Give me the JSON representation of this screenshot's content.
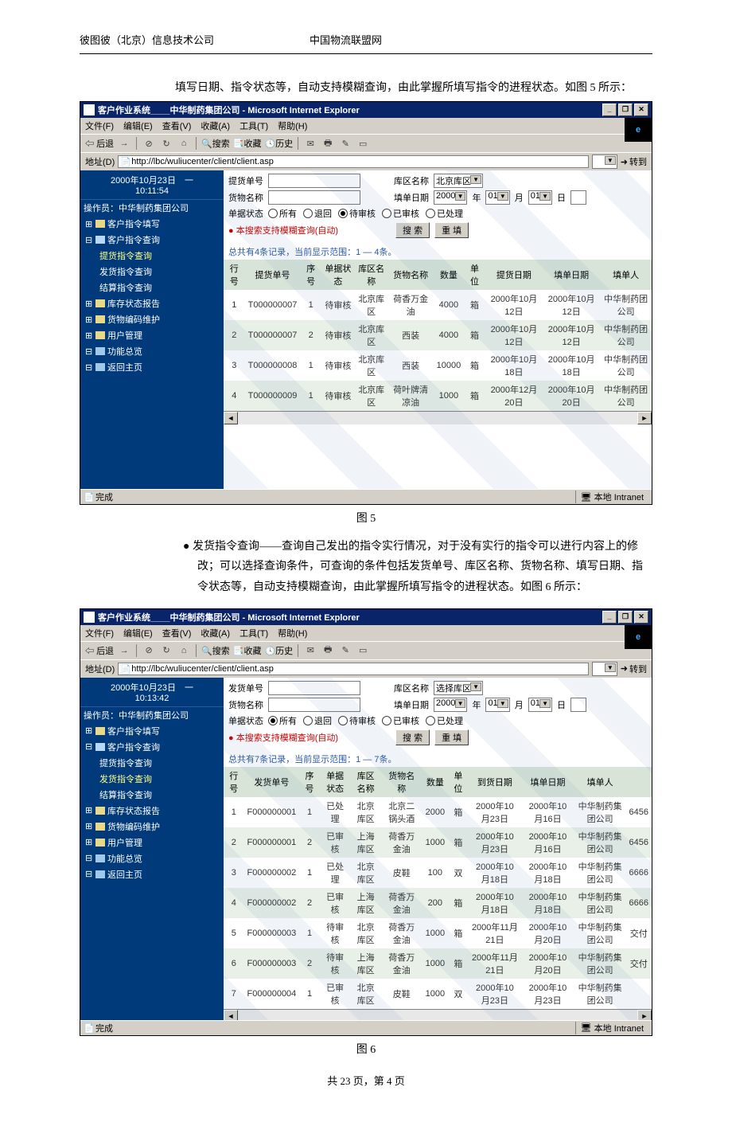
{
  "doc": {
    "header_left": "彼图彼（北京）信息技术公司",
    "header_right": "中国物流联盟网",
    "para_top": "填写日期、指令状态等，自动支持模糊查询，由此掌握所填写指令的进程状态。如图 5 所示：",
    "caption5": "图 5",
    "bullet6": "● 发货指令查询——查询自己发出的指令实行情况，对于没有实行的指令可以进行内容上的修改；可以选择查询条件，可查询的条件包括发货单号、库区名称、货物名称、填写日期、指令状态等，自动支持模糊查询，由此掌握所填写指令的进程状态。如图 6 所示：",
    "caption6": "图 6",
    "footer": "共 23 页，第 4 页"
  },
  "common": {
    "window_title": "客户作业系统____中华制药集团公司 - Microsoft Internet Explorer",
    "menus": [
      "文件(F)",
      "编辑(E)",
      "查看(V)",
      "收藏(A)",
      "工具(T)",
      "帮助(H)"
    ],
    "toolbar_back": "后退",
    "toolbar_search": "搜索",
    "toolbar_fav": "收藏",
    "toolbar_hist": "历史",
    "addr_label": "地址(D)",
    "addr_url": "http://lbc/wuliucenter/client/client.asp",
    "go_label": "转到",
    "status_done": "完成",
    "status_zone": "本地 Intranet",
    "win_buttons": [
      "_",
      "❐",
      "✕"
    ]
  },
  "sidebar_common": {
    "operator_label": "操作员：中华制药集团公司",
    "tree": {
      "t1": "客户指令填写",
      "t2": "客户指令查询",
      "t2a": "提货指令查询",
      "t2b": "发货指令查询",
      "t2c": "结算指令查询",
      "t3": "库存状态报告",
      "t4": "货物编码维护",
      "t5": "用户管理",
      "t6": "功能总览",
      "t7": "返回主页"
    }
  },
  "fig5": {
    "date": "2000年10月23日　一",
    "time": "10:11:54",
    "form": {
      "order_label": "提货单号",
      "warehouse_label": "库区名称",
      "warehouse_value": "北京库区",
      "goods_label": "货物名称",
      "filldate_label": "填单日期",
      "year": "2000",
      "year_unit": "年",
      "month": "01",
      "month_unit": "月",
      "day": "01",
      "day_unit": "日",
      "status_label": "单据状态",
      "radios": [
        "所有",
        "退回",
        "待审核",
        "已审核",
        "已处理"
      ],
      "radio_checked": 2,
      "hint": "● 本搜索支持模糊查询(自动)",
      "search_btn": "搜 索",
      "reset_btn": "重 填"
    },
    "count_text": "总共有4条记录，当前显示范围：1 — 4条。",
    "columns": [
      "行号",
      "提货单号",
      "序号",
      "单据状态",
      "库区名称",
      "货物名称",
      "数量",
      "单位",
      "提货日期",
      "填单日期",
      "填单人"
    ],
    "rows": [
      [
        "1",
        "T000000007",
        "1",
        "待审核",
        "北京库区",
        "荷香万金油",
        "4000",
        "箱",
        "2000年10月12日",
        "2000年10月12日",
        "中华制药团公司"
      ],
      [
        "2",
        "T000000007",
        "2",
        "待审核",
        "北京库区",
        "西装",
        "4000",
        "箱",
        "2000年10月12日",
        "2000年10月12日",
        "中华制药团公司"
      ],
      [
        "3",
        "T000000008",
        "1",
        "待审核",
        "北京库区",
        "西装",
        "10000",
        "箱",
        "2000年10月18日",
        "2000年10月18日",
        "中华制药团公司"
      ],
      [
        "4",
        "T000000009",
        "1",
        "待审核",
        "北京库区",
        "荷叶牌清凉油",
        "1000",
        "箱",
        "2000年12月20日",
        "2000年10月20日",
        "中华制药团公司"
      ]
    ]
  },
  "fig6": {
    "date": "2000年10月23日　一",
    "time": "10:13:42",
    "form": {
      "order_label": "发货单号",
      "warehouse_label": "库区名称",
      "warehouse_value": "选择库区",
      "goods_label": "货物名称",
      "filldate_label": "填单日期",
      "year": "2000",
      "year_unit": "年",
      "month": "01",
      "month_unit": "月",
      "day": "01",
      "day_unit": "日",
      "status_label": "单据状态",
      "radios": [
        "所有",
        "退回",
        "待审核",
        "已审核",
        "已处理"
      ],
      "radio_checked": 0,
      "hint": "● 本搜索支持模糊查询(自动)",
      "search_btn": "搜 索",
      "reset_btn": "重 填"
    },
    "count_text": "总共有7条记录，当前显示范围：1 — 7条。",
    "columns": [
      "行号",
      "发货单号",
      "序号",
      "单据状态",
      "库区名称",
      "货物名称",
      "数量",
      "单位",
      "到货日期",
      "填单日期",
      "填单人",
      ""
    ],
    "rows": [
      [
        "1",
        "F000000001",
        "1",
        "已处理",
        "北京库区",
        "北京二锅头酒",
        "2000",
        "箱",
        "2000年10月23日",
        "2000年10月16日",
        "中华制药集团公司",
        "6456"
      ],
      [
        "2",
        "F000000001",
        "2",
        "已审核",
        "上海库区",
        "荷香万金油",
        "1000",
        "箱",
        "2000年10月23日",
        "2000年10月16日",
        "中华制药集团公司",
        "6456"
      ],
      [
        "3",
        "F000000002",
        "1",
        "已处理",
        "北京库区",
        "皮鞋",
        "100",
        "双",
        "2000年10月18日",
        "2000年10月18日",
        "中华制药集团公司",
        "6666"
      ],
      [
        "4",
        "F000000002",
        "2",
        "已审核",
        "上海库区",
        "荷香万金油",
        "200",
        "箱",
        "2000年10月18日",
        "2000年10月18日",
        "中华制药集团公司",
        "6666"
      ],
      [
        "5",
        "F000000003",
        "1",
        "待审核",
        "北京库区",
        "荷香万金油",
        "1000",
        "箱",
        "2000年11月21日",
        "2000年10月20日",
        "中华制药集团公司",
        "交付"
      ],
      [
        "6",
        "F000000003",
        "2",
        "待审核",
        "上海库区",
        "荷香万金油",
        "1000",
        "箱",
        "2000年11月21日",
        "2000年10月20日",
        "中华制药集团公司",
        "交付"
      ],
      [
        "7",
        "F000000004",
        "1",
        "已审核",
        "北京库区",
        "皮鞋",
        "1000",
        "双",
        "2000年10月23日",
        "2000年10月23日",
        "中华制药集团公司",
        ""
      ]
    ]
  }
}
